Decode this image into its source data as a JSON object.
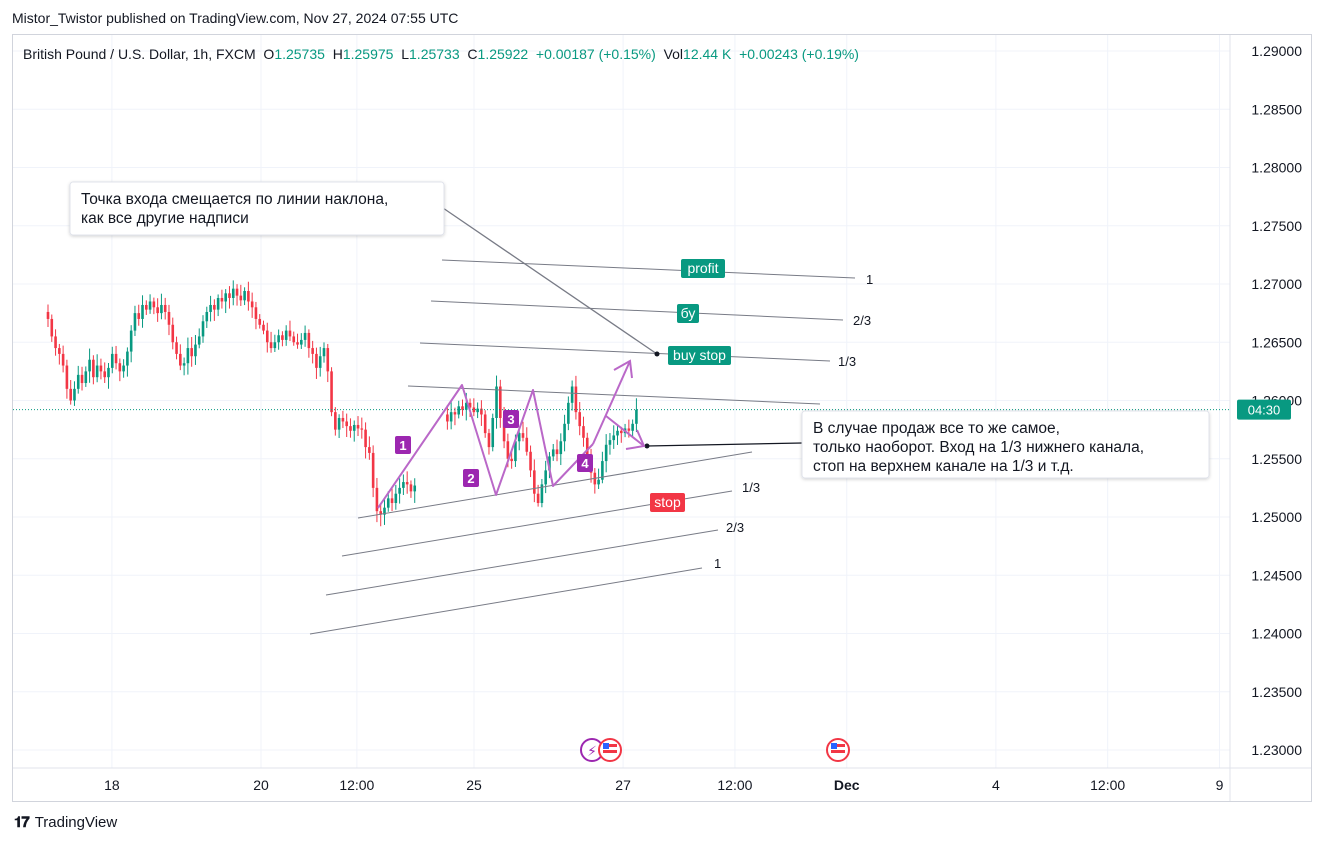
{
  "header": {
    "published_by": "Mistor_Twistor published on TradingView.com, Nov 27, 2024 07:55 UTC"
  },
  "legend": {
    "symbol": "British Pound / U.S. Dollar, 1h, FXCM",
    "o_label": "O",
    "o_value": "1.25735",
    "h_label": "H",
    "h_value": "1.25975",
    "l_label": "L",
    "l_value": "1.25733",
    "c_label": "C",
    "c_value": "1.25922",
    "change": "+0.00187 (+0.15%)",
    "vol_label": "Vol",
    "vol_value": "12.44 K",
    "vol_change": "+0.00243 (+0.19%)"
  },
  "footer": {
    "brand": "TradingView"
  },
  "colors": {
    "up": "#089981",
    "down": "#f23645",
    "annotation": "#ba68c8",
    "pattern_label": "#9c27b0",
    "label_green": "#089981",
    "label_red": "#f23645"
  },
  "chart_data": {
    "type": "candlestick",
    "symbol": "GBPUSD",
    "timeframe": "1h",
    "y_axis": {
      "ylim": [
        1.227,
        1.292
      ],
      "ticks": [
        "1.23000",
        "1.23500",
        "1.24000",
        "1.24500",
        "1.25000",
        "1.25500",
        "1.26000",
        "1.26500",
        "1.27000",
        "1.27500",
        "1.28000",
        "1.28500",
        "1.29000"
      ],
      "last_price": 1.25922,
      "countdown": "04:30"
    },
    "x_axis": {
      "ticks": [
        {
          "label": "18",
          "t": 0.6
        },
        {
          "label": "20",
          "t": 2.0
        },
        {
          "label": "12:00",
          "t": 2.9
        },
        {
          "label": "25",
          "t": 4.0
        },
        {
          "label": "27",
          "t": 5.4
        },
        {
          "label": "12:00",
          "t": 6.45
        },
        {
          "label": "Dec",
          "t": 7.5
        },
        {
          "label": "4",
          "t": 8.9
        },
        {
          "label": "12:00",
          "t": 9.95
        },
        {
          "label": "9",
          "t": 11.0
        }
      ]
    },
    "candles": {
      "t_start": 0,
      "t_step": 0.0355,
      "close": [
        1.267,
        1.2655,
        1.2645,
        1.264,
        1.263,
        1.261,
        1.26,
        1.261,
        1.2622,
        1.2615,
        1.2625,
        1.2635,
        1.262,
        1.263,
        1.2625,
        1.262,
        1.2628,
        1.264,
        1.2632,
        1.2625,
        1.263,
        1.2642,
        1.266,
        1.2675,
        1.267,
        1.2682,
        1.2678,
        1.2685,
        1.268,
        1.2675,
        1.2682,
        1.2676,
        1.2665,
        1.265,
        1.264,
        1.263,
        1.2632,
        1.2645,
        1.2638,
        1.2648,
        1.2655,
        1.2668,
        1.2676,
        1.2682,
        1.2678,
        1.2688,
        1.2685,
        1.2692,
        1.2688,
        1.2696,
        1.269,
        1.2686,
        1.2694,
        1.2685,
        1.268,
        1.267,
        1.2665,
        1.266,
        1.265,
        1.2645,
        1.265,
        1.2656,
        1.2652,
        1.266,
        1.2655,
        1.265,
        1.2648,
        1.2652,
        1.2658,
        1.2645,
        1.264,
        1.2628,
        1.2638,
        1.2645,
        1.2625,
        1.259,
        1.2575,
        1.2585,
        1.2582,
        1.2578,
        1.2574,
        1.2579,
        1.2576,
        1.2575,
        1.256,
        1.2555,
        1.2525,
        1.2505,
        1.2502,
        1.2508,
        1.2516,
        1.2512,
        1.252,
        1.2525,
        1.253,
        1.2528,
        1.2522,
        1.2527
      ],
      "note": "rendered series 1 (Nov 18-22)"
    },
    "candles2": {
      "t_start": 3.75,
      "t_step": 0.0355,
      "close": [
        1.2582,
        1.259,
        1.2588,
        1.2595,
        1.2592,
        1.2598,
        1.2594,
        1.259,
        1.2593,
        1.2588,
        1.2572,
        1.256,
        1.2585,
        1.2612,
        1.2585,
        1.2565,
        1.255,
        1.2548,
        1.2565,
        1.2572,
        1.2568,
        1.2556,
        1.254,
        1.252,
        1.2512,
        1.2528,
        1.254,
        1.2552,
        1.2558,
        1.2554,
        1.2565,
        1.258,
        1.2598,
        1.2612,
        1.259,
        1.2578,
        1.2568,
        1.2552,
        1.2538,
        1.2528,
        1.2532,
        1.2548,
        1.2562,
        1.2566,
        1.257,
        1.2574,
        1.2572,
        1.2576,
        1.2574,
        1.258,
        1.2592
      ]
    }
  },
  "annotations": {
    "note1": {
      "line1": "Точка входа смещается по линии наклона,",
      "line2": "как все другие надписи"
    },
    "note2": {
      "line1": "В случае продаж все то же самое,",
      "line2": "только наоборот. Вход на 1/3 нижнего канала,",
      "line3": "стоп на верхнем канале на 1/3 и т.д."
    },
    "labels": {
      "profit": "profit",
      "by": "бу",
      "buy_stop": "buy stop",
      "stop": "stop"
    },
    "level_labels": {
      "upper_1": "1",
      "upper_2_3": "2/3",
      "upper_1_3": "1/3",
      "lower_1_3": "1/3",
      "lower_2_3": "2/3",
      "lower_1": "1"
    },
    "pattern_points": [
      "1",
      "2",
      "3",
      "4"
    ]
  }
}
